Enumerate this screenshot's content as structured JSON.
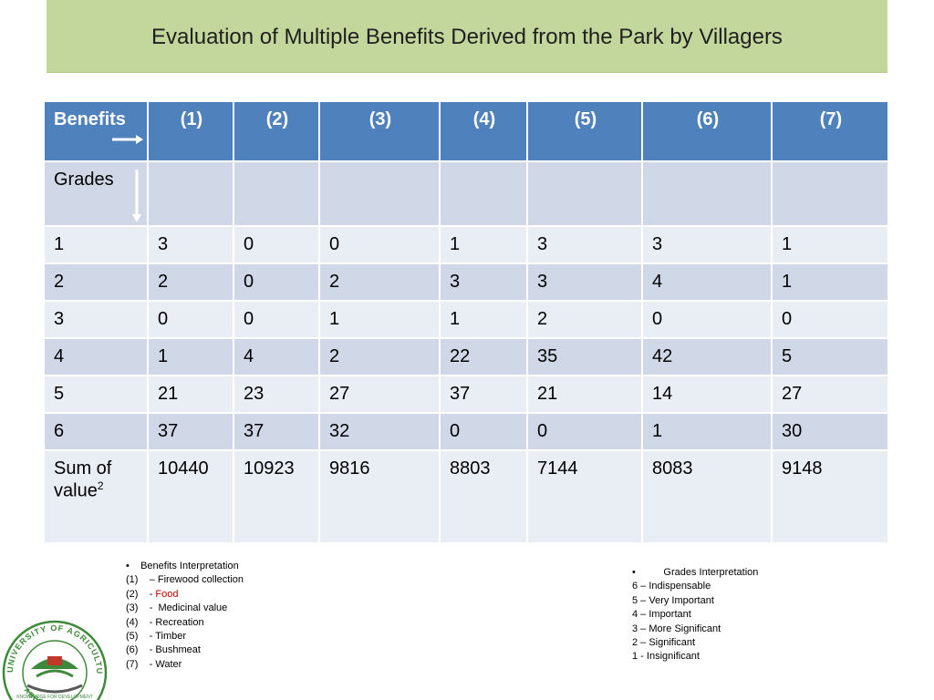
{
  "title": "Evaluation of Multiple Benefits Derived from the Park by Villagers",
  "table": {
    "header_first": "Benefits",
    "columns": [
      "(1)",
      "(2)",
      "(3)",
      "(4)",
      "(5)",
      "(6)",
      "(7)"
    ],
    "grades_label": "Grades",
    "rows": [
      {
        "grade": "1",
        "values": [
          "3",
          "0",
          "0",
          "1",
          "3",
          "3",
          "1"
        ]
      },
      {
        "grade": "2",
        "values": [
          "2",
          "0",
          "2",
          "3",
          "3",
          "4",
          "1"
        ]
      },
      {
        "grade": "3",
        "values": [
          "0",
          "0",
          "1",
          "1",
          "2",
          "0",
          "0"
        ]
      },
      {
        "grade": "4",
        "values": [
          "1",
          "4",
          "2",
          "22",
          "35",
          "42",
          "5"
        ]
      },
      {
        "grade": "5",
        "values": [
          "21",
          "23",
          "27",
          "37",
          "21",
          "14",
          "27"
        ]
      },
      {
        "grade": "6",
        "values": [
          "37",
          "37",
          "32",
          "0",
          "0",
          "1",
          "30"
        ]
      }
    ],
    "sum_label_line1": "Sum of",
    "sum_label_line2": "value",
    "sum_label_sup": "2",
    "sum_values": [
      "10440",
      "10923",
      "9816",
      "8803",
      "7144",
      "8083",
      "9148"
    ],
    "highlight_color": "#c00000"
  },
  "benefits_legend": {
    "bullet": "•",
    "heading": "Benefits Interpretation",
    "items": [
      {
        "num": "(1)",
        "text": "– Firewood collection"
      },
      {
        "num": "(2)",
        "text": "- ",
        "highlight": "Food"
      },
      {
        "num": "(3)",
        "text": "-  Medicinal value"
      },
      {
        "num": "(4)",
        "text": "- Recreation"
      },
      {
        "num": "(5)",
        "text": "- Timber"
      },
      {
        "num": "(6)",
        "text": "- Bushmeat"
      },
      {
        "num": "(7)",
        "text": "- Water"
      }
    ]
  },
  "grades_legend": {
    "bullet": "•",
    "heading": "Grades Interpretation",
    "items": [
      "6 – Indispensable",
      "5 – Very Important",
      "4 – Important",
      "3 – More Significant",
      "2 – Significant",
      "1 - Insignificant"
    ]
  },
  "logo": {
    "arc_text": "UNIVERSITY OF AGRICULTURE",
    "city_text": "ABEOKUTA",
    "motto_text": "KNOWLEDGE FOR DEVELOPMENT"
  },
  "colors": {
    "title_bg": "#c3d69b",
    "header_bg": "#4f81bd",
    "row_dark": "#d0d8e8",
    "row_light": "#e9edf4"
  }
}
